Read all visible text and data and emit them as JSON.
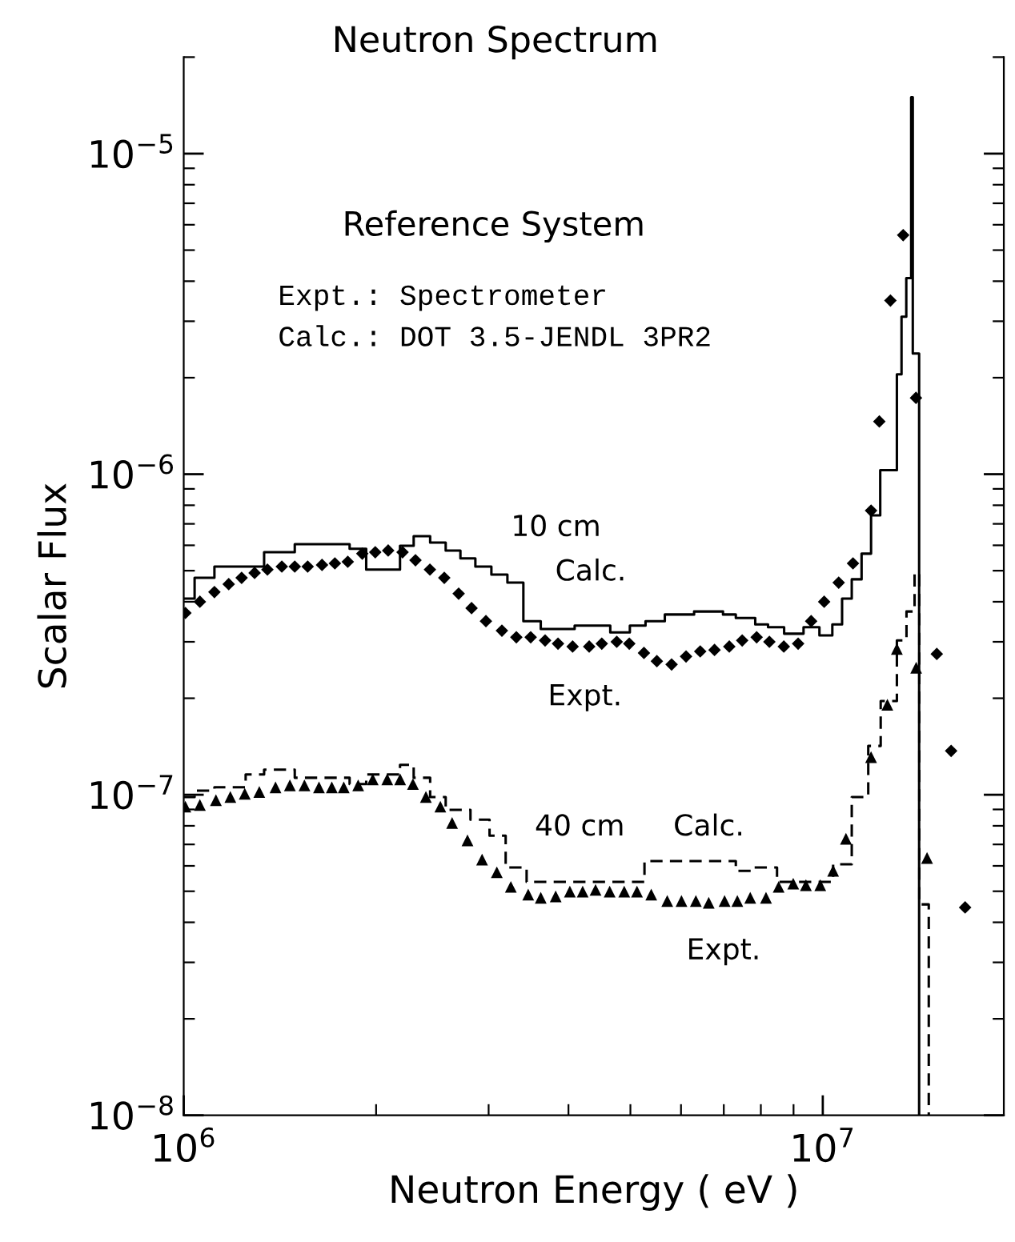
{
  "chart_data": {
    "type": "scatter",
    "title": "Neutron Spectrum",
    "xlabel": "Neutron Energy ( eV )",
    "ylabel": "Scalar Flux",
    "log": "xy",
    "grid": false,
    "xlim": [
      1000000,
      19200000
    ],
    "ylim": [
      1e-08,
      2e-05
    ],
    "xticks": [
      {
        "value": 1000000,
        "label": "10$^{6}$"
      },
      {
        "value": 10000000,
        "label": "10$^{7}$"
      }
    ],
    "yticks": [
      {
        "value": 1e-08,
        "label": "10$^{−8}$"
      },
      {
        "value": 1e-07,
        "label": "10$^{−7}$"
      },
      {
        "value": 1e-06,
        "label": "10$^{−6}$"
      },
      {
        "value": 1e-05,
        "label": "10$^{−5}$"
      }
    ],
    "series": [
      {
        "type": "step",
        "color": "#000000",
        "line_style": "solid",
        "marker": "none",
        "x": [
          1000000,
          1040000,
          1117000,
          1336000,
          1492000,
          1818000,
          1930000,
          2180000,
          2290000,
          2430000,
          2570000,
          2710000,
          2860000,
          3030000,
          3210000,
          3400000,
          3620000,
          4090000,
          4650000,
          4990000,
          5280000,
          5660000,
          6290000,
          6980000,
          7310000,
          7840000,
          8210000,
          8700000,
          9330000,
          9880000,
          10350000,
          10720000,
          11100000,
          11500000,
          11900000,
          12300000,
          13060000,
          13280000,
          13510000,
          13750000,
          13830000,
          13990000,
          14150000
        ],
        "values": [
          4.09e-07,
          4.75e-07,
          5.15e-07,
          5.71e-07,
          6.05e-07,
          5.85e-07,
          5.04e-07,
          5.98e-07,
          6.41e-07,
          6.12e-07,
          5.78e-07,
          5.46e-07,
          5.15e-07,
          4.86e-07,
          4.59e-07,
          3.48e-07,
          3.29e-07,
          3.37e-07,
          3.21e-07,
          3.37e-07,
          3.48e-07,
          3.65e-07,
          3.73e-07,
          3.65e-07,
          3.56e-07,
          3.4e-07,
          3.33e-07,
          3.18e-07,
          3.33e-07,
          3.14e-07,
          3.4e-07,
          4.09e-07,
          4.7e-07,
          5.65e-07,
          7.44e-07,
          1.03e-06,
          2.05e-06,
          3.1e-06,
          4.09e-06,
          1.5e-05,
          2.38e-06,
          2.38e-06,
          1e-08
        ]
      },
      {
        "color": "#000000",
        "marker": "diamond",
        "x": [
          1006000,
          1060000,
          1117000,
          1176000,
          1232000,
          1291000,
          1352000,
          1424000,
          1492000,
          1563000,
          1646000,
          1724000,
          1806000,
          1903000,
          1994000,
          2089000,
          2200000,
          2305000,
          2428000,
          2557000,
          2693000,
          2821000,
          2971000,
          3147000,
          3315000,
          3491000,
          3677000,
          3852000,
          4060000,
          4310000,
          4510000,
          4760000,
          4980000,
          5250000,
          5500000,
          5800000,
          6110000,
          6430000,
          6770000,
          7140000,
          7480000,
          7880000,
          8250000,
          8690000,
          9150000,
          9590000,
          10050000,
          10590000,
          11150000,
          11900000,
          12260000,
          12760000,
          13360000,
          13990000,
          15080000,
          15880000,
          16700000
        ],
        "values": [
          3.69e-07,
          4e-07,
          4.29e-07,
          4.54e-07,
          4.75e-07,
          4.92e-07,
          5.04e-07,
          5.15e-07,
          5.15e-07,
          5.15e-07,
          5.21e-07,
          5.27e-07,
          5.33e-07,
          5.65e-07,
          5.71e-07,
          5.78e-07,
          5.71e-07,
          5.39e-07,
          5.04e-07,
          4.75e-07,
          4.24e-07,
          3.82e-07,
          3.48e-07,
          3.25e-07,
          3.1e-07,
          3.1e-07,
          3.03e-07,
          2.96e-07,
          2.9e-07,
          2.9e-07,
          2.96e-07,
          3e-07,
          2.96e-07,
          2.77e-07,
          2.61e-07,
          2.55e-07,
          2.7e-07,
          2.8e-07,
          2.83e-07,
          2.9e-07,
          3.03e-07,
          3.1e-07,
          3e-07,
          2.9e-07,
          2.96e-07,
          3.48e-07,
          4e-07,
          4.59e-07,
          5.27e-07,
          7.7e-07,
          1.46e-06,
          3.48e-06,
          5.57e-06,
          1.73e-06,
          2.75e-07,
          1.37e-07,
          4.45e-08
        ]
      },
      {
        "type": "step",
        "color": "#000000",
        "line_style": "dashed",
        "marker": "none",
        "x": [
          1000000,
          1040000,
          1117000,
          1250000,
          1336000,
          1492000,
          1818000,
          1930000,
          2180000,
          2290000,
          2430000,
          2570000,
          2810000,
          3010000,
          3190000,
          3440000,
          5260000,
          7310000,
          7740000,
          8480000,
          10380000,
          11100000,
          11780000,
          12320000,
          13060000,
          13520000,
          13920000,
          14160000,
          14650000
        ],
        "values": [
          9.84e-08,
          1.03e-07,
          1.055e-07,
          1.157e-07,
          1.197e-07,
          1.13e-07,
          1.08e-07,
          1.157e-07,
          1.24e-07,
          1.13e-07,
          9.84e-08,
          8.97e-08,
          8.36e-08,
          7.45e-08,
          5.93e-08,
          5.35e-08,
          6.21e-08,
          5.79e-08,
          5.93e-08,
          5.35e-08,
          6.07e-08,
          9.84e-08,
          1.42e-07,
          1.96e-07,
          3.03e-07,
          3.73e-07,
          4.92e-07,
          4.55e-08,
          1e-08
        ]
      },
      {
        "color": "#000000",
        "marker": "triangle",
        "x": [
          1006000,
          1060000,
          1123000,
          1183000,
          1246000,
          1313000,
          1392000,
          1466000,
          1545000,
          1628000,
          1705000,
          1780000,
          1875000,
          1976000,
          2082000,
          2181000,
          2284000,
          2393000,
          2521000,
          2630000,
          2780000,
          2930000,
          3090000,
          3250000,
          3460000,
          3620000,
          3820000,
          4020000,
          4210000,
          4410000,
          4640000,
          4890000,
          5120000,
          5390000,
          5710000,
          6010000,
          6330000,
          6630000,
          7020000,
          7350000,
          7700000,
          8150000,
          8530000,
          8990000,
          9410000,
          9910000,
          10380000,
          10870000,
          11900000,
          12620000,
          13060000,
          14000000,
          14560000
        ],
        "values": [
          9.18e-08,
          9.29e-08,
          9.62e-08,
          9.84e-08,
          1.007e-07,
          1.02e-07,
          1.055e-07,
          1.07e-07,
          1.07e-07,
          1.055e-07,
          1.055e-07,
          1.055e-07,
          1.07e-07,
          1.117e-07,
          1.117e-07,
          1.117e-07,
          1.08e-07,
          9.84e-08,
          9.18e-08,
          8.17e-08,
          7.21e-08,
          6.28e-08,
          5.73e-08,
          5.16e-08,
          4.88e-08,
          4.77e-08,
          4.82e-08,
          4.99e-08,
          4.99e-08,
          5.05e-08,
          4.99e-08,
          4.99e-08,
          4.99e-08,
          4.88e-08,
          4.66e-08,
          4.66e-08,
          4.66e-08,
          4.6e-08,
          4.66e-08,
          4.66e-08,
          4.77e-08,
          4.77e-08,
          5.16e-08,
          5.28e-08,
          5.22e-08,
          5.22e-08,
          5.79e-08,
          7.29e-08,
          1.31e-07,
          1.91e-07,
          2.85e-07,
          2.49e-07,
          6.35e-08
        ]
      }
    ],
    "annotations": [
      "Reference System",
      "Expt.: Spectrometer",
      "Calc.: DOT 3.5-JENDL 3PR2",
      "10 cm",
      "Calc.",
      "Expt.",
      "40 cm",
      "Calc.",
      "Expt."
    ]
  }
}
